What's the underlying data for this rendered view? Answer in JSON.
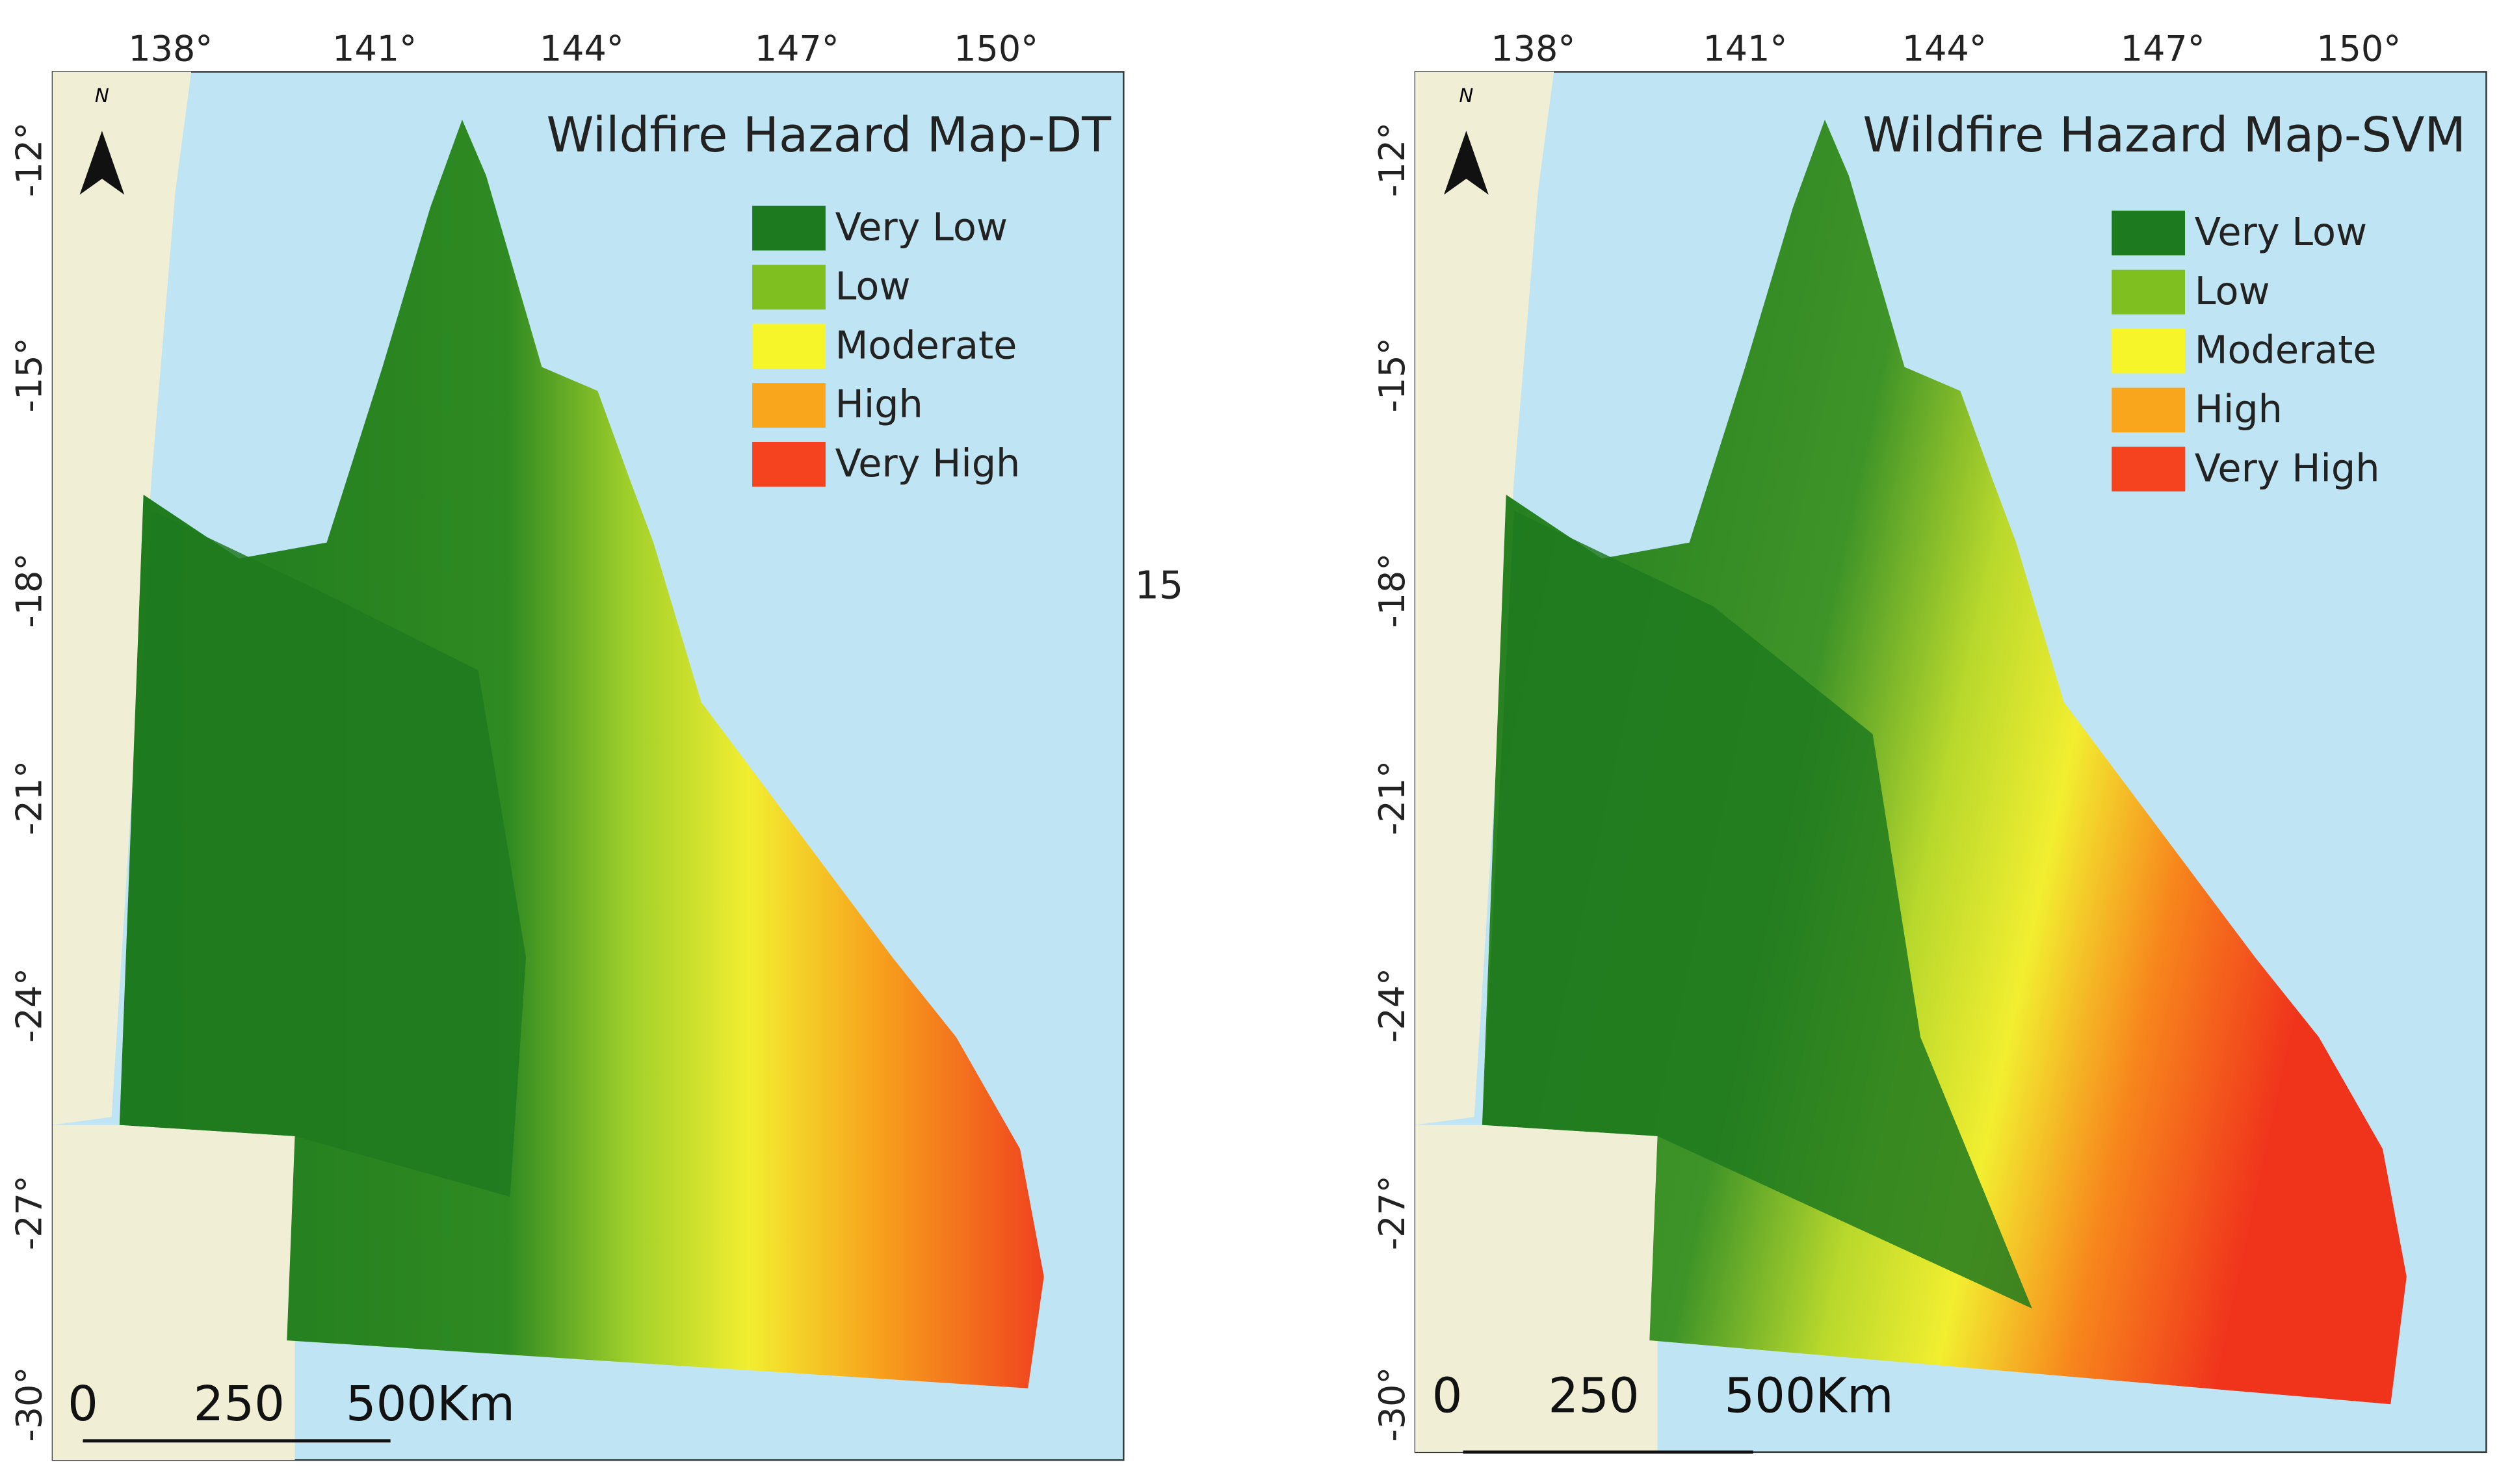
{
  "panels": [
    {
      "title": "Wildfire Hazard Map-DT",
      "lon_labels": [
        "138°",
        "141°",
        "144°",
        "147°",
        "150°"
      ],
      "lat_labels": [
        "-12°",
        "-15°",
        "-18°",
        "-21°",
        "-24°",
        "-27°",
        "-30°"
      ],
      "legend": [
        {
          "label": "Very Low",
          "color": "#1e7a1e"
        },
        {
          "label": "Low",
          "color": "#7fbf1f"
        },
        {
          "label": "Moderate",
          "color": "#f5f52a"
        },
        {
          "label": "High",
          "color": "#f9a61c"
        },
        {
          "label": "Very High",
          "color": "#f4431e"
        }
      ],
      "scale_labels": [
        "0",
        "250",
        "500Km"
      ],
      "north": "N",
      "edge_label": "15"
    },
    {
      "title": "Wildfire Hazard Map-SVM",
      "lon_labels": [
        "138°",
        "141°",
        "144°",
        "147°",
        "150°"
      ],
      "lat_labels": [
        "-12°",
        "-15°",
        "-18°",
        "-21°",
        "-24°",
        "-27°",
        "-30°"
      ],
      "legend": [
        {
          "label": "Very Low",
          "color": "#1e7a1e"
        },
        {
          "label": "Low",
          "color": "#7fbf1f"
        },
        {
          "label": "Moderate",
          "color": "#f5f52a"
        },
        {
          "label": "High",
          "color": "#f9a61c"
        },
        {
          "label": "Very High",
          "color": "#f4431e"
        }
      ],
      "scale_labels": [
        "0",
        "250",
        "500Km"
      ],
      "north": "N"
    }
  ]
}
